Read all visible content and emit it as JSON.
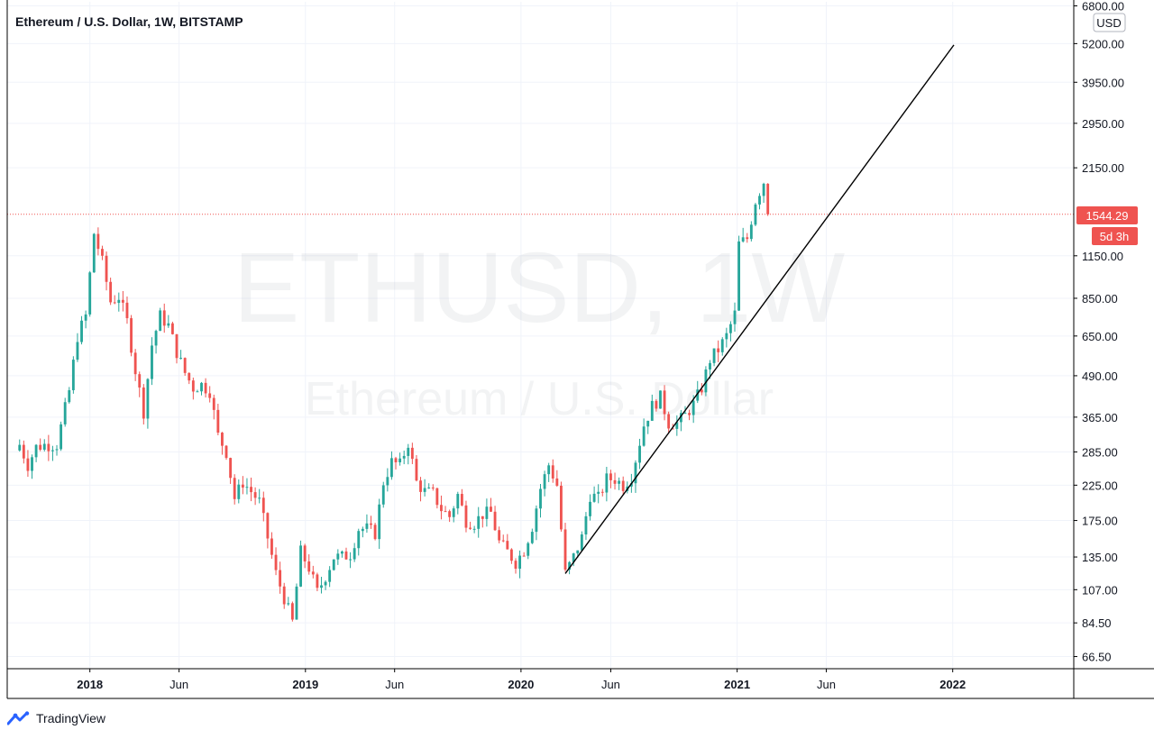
{
  "header": {
    "title": "Ethereum / U.S. Dollar, 1W, BITSTAMP"
  },
  "watermark": {
    "symbol": "ETHUSD, 1W",
    "name": "Ethereum / U.S. Dollar"
  },
  "price_axis": {
    "currency_label": "USD",
    "last_price_label": "1544.29",
    "countdown_label": "5d 3h"
  },
  "branding": {
    "logo_text": "TradingView"
  },
  "colors": {
    "up": "#26a69a",
    "down": "#ef5350",
    "trendline": "#000000",
    "grid": "#f0f3fa",
    "axis": "#000000",
    "last_price": "#ef5350"
  },
  "chart_data": {
    "type": "candlestick",
    "interval": "1W",
    "y_scale": "log",
    "ylim": [
      61,
      7000
    ],
    "xlim": [
      "2017-08-14",
      "2022-07-25"
    ],
    "y_ticks": [
      {
        "value": 6800,
        "label": "6800.00"
      },
      {
        "value": 5200,
        "label": "5200.00"
      },
      {
        "value": 3950,
        "label": "3950.00"
      },
      {
        "value": 2950,
        "label": "2950.00"
      },
      {
        "value": 2150,
        "label": "2150.00"
      },
      {
        "value": 1150,
        "label": "1150.00"
      },
      {
        "value": 850,
        "label": "850.00"
      },
      {
        "value": 650,
        "label": "650.00"
      },
      {
        "value": 490,
        "label": "490.00"
      },
      {
        "value": 365,
        "label": "365.00"
      },
      {
        "value": 285,
        "label": "285.00"
      },
      {
        "value": 225,
        "label": "225.00"
      },
      {
        "value": 175,
        "label": "175.00"
      },
      {
        "value": 135,
        "label": "135.00"
      },
      {
        "value": 107,
        "label": "107.00"
      },
      {
        "value": 84.5,
        "label": "84.50"
      },
      {
        "value": 66.5,
        "label": "66.50"
      }
    ],
    "x_ticks": [
      {
        "date": "2018-01-01",
        "label": "2018",
        "major": true
      },
      {
        "date": "2018-06-01",
        "label": "Jun",
        "major": false
      },
      {
        "date": "2019-01-01",
        "label": "2019",
        "major": true
      },
      {
        "date": "2019-06-01",
        "label": "Jun",
        "major": false
      },
      {
        "date": "2020-01-01",
        "label": "2020",
        "major": true
      },
      {
        "date": "2020-06-01",
        "label": "Jun",
        "major": false
      },
      {
        "date": "2021-01-01",
        "label": "2021",
        "major": true
      },
      {
        "date": "2021-06-01",
        "label": "Jun",
        "major": false
      },
      {
        "date": "2022-01-01",
        "label": "2022",
        "major": true
      }
    ],
    "last_price": 1544.29,
    "trendline": {
      "from": {
        "date": "2020-03-16",
        "price": 120
      },
      "to": {
        "date": "2022-01-03",
        "price": 5150
      }
    },
    "path": [
      [
        "2017-09-04",
        300
      ],
      [
        "2017-09-18",
        260
      ],
      [
        "2017-10-02",
        295
      ],
      [
        "2017-10-16",
        300
      ],
      [
        "2017-11-06",
        300
      ],
      [
        "2017-11-27",
        440
      ],
      [
        "2017-12-11",
        650
      ],
      [
        "2017-12-25",
        750
      ],
      [
        "2018-01-08",
        1350
      ],
      [
        "2018-01-22",
        1100
      ],
      [
        "2018-02-05",
        830
      ],
      [
        "2018-02-19",
        860
      ],
      [
        "2018-03-05",
        720
      ],
      [
        "2018-03-19",
        510
      ],
      [
        "2018-04-02",
        380
      ],
      [
        "2018-04-16",
        610
      ],
      [
        "2018-04-30",
        750
      ],
      [
        "2018-05-14",
        700
      ],
      [
        "2018-05-28",
        580
      ],
      [
        "2018-06-11",
        500
      ],
      [
        "2018-06-25",
        450
      ],
      [
        "2018-07-09",
        460
      ],
      [
        "2018-07-23",
        440
      ],
      [
        "2018-08-06",
        320
      ],
      [
        "2018-08-20",
        285
      ],
      [
        "2018-09-03",
        205
      ],
      [
        "2018-09-17",
        230
      ],
      [
        "2018-10-01",
        215
      ],
      [
        "2018-10-15",
        200
      ],
      [
        "2018-11-12",
        120
      ],
      [
        "2018-12-10",
        85
      ],
      [
        "2018-12-24",
        140
      ],
      [
        "2019-01-07",
        125
      ],
      [
        "2019-01-21",
        105
      ],
      [
        "2019-02-04",
        118
      ],
      [
        "2019-02-18",
        135
      ],
      [
        "2019-03-04",
        135
      ],
      [
        "2019-03-18",
        138
      ],
      [
        "2019-04-01",
        165
      ],
      [
        "2019-04-15",
        165
      ],
      [
        "2019-04-29",
        160
      ],
      [
        "2019-05-13",
        230
      ],
      [
        "2019-05-27",
        265
      ],
      [
        "2019-06-10",
        260
      ],
      [
        "2019-06-24",
        305
      ],
      [
        "2019-07-08",
        230
      ],
      [
        "2019-07-22",
        215
      ],
      [
        "2019-08-05",
        212
      ],
      [
        "2019-08-19",
        190
      ],
      [
        "2019-09-02",
        180
      ],
      [
        "2019-09-16",
        210
      ],
      [
        "2019-09-30",
        175
      ],
      [
        "2019-10-14",
        172
      ],
      [
        "2019-10-28",
        183
      ],
      [
        "2019-11-11",
        185
      ],
      [
        "2019-11-25",
        150
      ],
      [
        "2019-12-09",
        140
      ],
      [
        "2019-12-23",
        130
      ],
      [
        "2020-01-06",
        142
      ],
      [
        "2020-01-20",
        168
      ],
      [
        "2020-02-03",
        220
      ],
      [
        "2020-02-17",
        260
      ],
      [
        "2020-03-02",
        225
      ],
      [
        "2020-03-16",
        120
      ],
      [
        "2020-03-30",
        135
      ],
      [
        "2020-04-13",
        155
      ],
      [
        "2020-04-27",
        210
      ],
      [
        "2020-05-11",
        205
      ],
      [
        "2020-05-25",
        235
      ],
      [
        "2020-06-08",
        235
      ],
      [
        "2020-06-22",
        225
      ],
      [
        "2020-07-06",
        240
      ],
      [
        "2020-07-27",
        345
      ],
      [
        "2020-08-10",
        395
      ],
      [
        "2020-08-24",
        420
      ],
      [
        "2020-09-07",
        350
      ],
      [
        "2020-09-21",
        350
      ],
      [
        "2020-10-05",
        370
      ],
      [
        "2020-10-19",
        400
      ],
      [
        "2020-11-02",
        450
      ],
      [
        "2020-11-16",
        550
      ],
      [
        "2020-11-30",
        590
      ],
      [
        "2020-12-14",
        650
      ],
      [
        "2020-12-28",
        760
      ],
      [
        "2021-01-04",
        1250
      ],
      [
        "2021-01-18",
        1300
      ],
      [
        "2021-02-01",
        1700
      ],
      [
        "2021-02-15",
        1950
      ],
      [
        "2021-02-22",
        1544.29
      ]
    ]
  }
}
